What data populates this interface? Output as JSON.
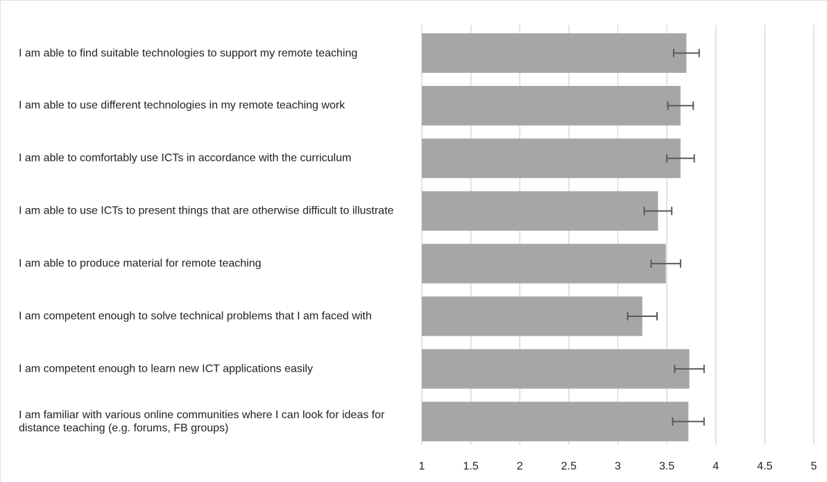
{
  "chart_data": {
    "type": "hbar",
    "categories": [
      "I am able to find suitable technologies to support my remote teaching",
      "I am able to use different technologies in my remote teaching work",
      "I am able to comfortably use ICTs in accordance with the curriculum",
      "I am able to use ICTs to present things that are otherwise difficult to illustrate",
      "I am able to produce material for remote teaching",
      "I am competent enough to solve technical problems that I am faced with",
      "I am competent enough to learn new ICT applications easily",
      "I am familiar with various online communities where I can look for ideas for distance teaching (e.g. forums, FB groups)"
    ],
    "values": [
      3.7,
      3.64,
      3.64,
      3.41,
      3.49,
      3.25,
      3.73,
      3.72
    ],
    "errors": [
      0.13,
      0.13,
      0.14,
      0.14,
      0.15,
      0.15,
      0.15,
      0.16
    ],
    "color": "#a6a6a6",
    "error_color": "#595959",
    "xlim": [
      1,
      5
    ],
    "xticks": [
      1,
      1.5,
      2,
      2.5,
      3,
      3.5,
      4,
      4.5,
      5
    ],
    "grid": true
  }
}
